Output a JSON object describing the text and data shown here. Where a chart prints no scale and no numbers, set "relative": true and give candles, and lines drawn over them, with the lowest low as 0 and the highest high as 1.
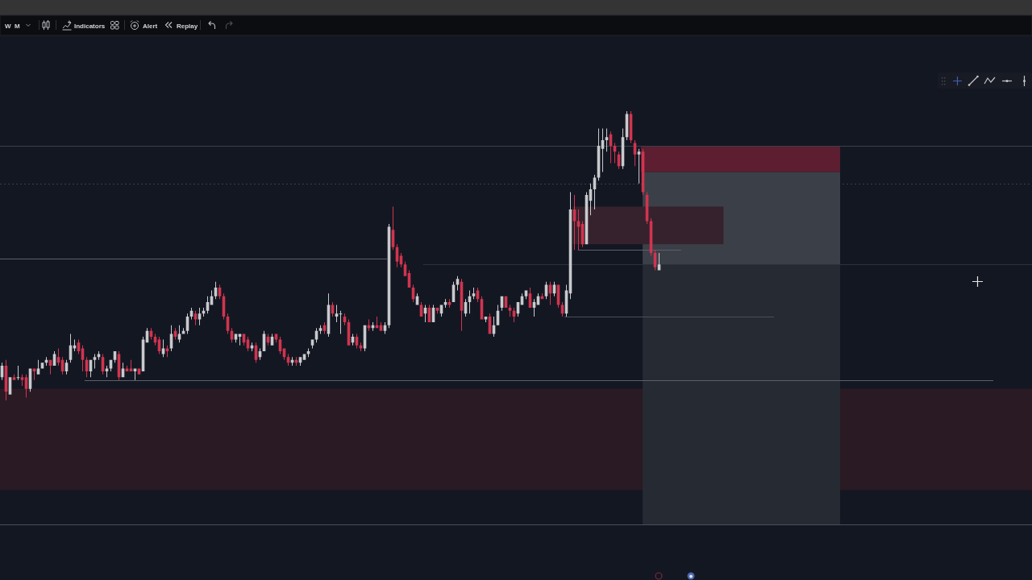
{
  "chart_data": {
    "type": "candlestick",
    "relative": true,
    "annotations": [
      "W",
      "M",
      "Indicators",
      "Alert",
      "Replay"
    ],
    "categories": [
      null,
      null,
      null,
      null,
      null,
      null,
      null,
      null,
      null,
      null,
      null,
      null,
      null,
      null,
      null,
      null,
      null,
      null,
      null,
      null,
      null,
      null,
      null,
      null,
      null,
      null,
      null,
      null,
      null,
      null,
      null,
      null,
      null,
      null,
      null,
      null,
      null,
      null,
      null,
      null,
      null,
      null,
      null,
      null,
      null,
      null,
      null,
      null,
      null,
      null,
      null,
      null,
      null,
      null,
      null,
      null,
      null,
      null,
      null,
      null,
      null,
      null,
      null,
      null,
      null,
      null,
      null,
      null,
      null,
      null,
      null,
      null,
      null,
      null,
      null,
      null,
      null,
      null,
      null,
      null,
      null,
      null,
      null,
      null,
      null,
      null,
      null,
      null,
      null,
      null,
      null,
      null,
      null,
      null,
      null,
      null,
      null,
      null,
      null,
      null,
      null,
      null,
      null,
      null,
      null,
      null,
      null,
      null,
      null,
      null,
      null,
      null,
      null,
      null,
      null,
      null,
      null,
      null,
      null,
      null,
      null,
      null,
      null,
      null,
      null,
      null,
      null,
      null,
      null,
      null,
      null,
      null,
      null,
      null,
      null,
      null,
      null,
      null,
      null,
      null,
      null,
      null,
      null,
      null,
      null,
      null,
      null,
      null,
      null,
      null,
      null,
      null,
      null,
      null,
      null,
      null,
      null,
      null,
      null,
      null,
      null,
      null,
      null,
      null,
      null,
      null,
      null,
      null,
      null,
      null,
      null,
      null,
      null,
      null,
      null,
      null,
      null,
      null,
      null,
      null,
      null,
      null,
      null,
      null,
      null,
      null,
      null,
      null,
      null,
      null,
      null,
      null,
      null,
      null,
      null,
      null,
      null,
      null,
      null,
      null,
      null,
      null,
      null,
      null,
      null,
      null,
      null,
      null,
      null,
      null,
      null,
      null,
      null,
      null,
      null,
      null,
      null,
      null,
      null,
      null,
      null,
      null,
      null,
      null,
      null,
      null,
      null,
      null,
      null,
      null,
      null,
      null,
      null,
      null,
      null,
      null,
      null,
      null,
      null,
      null,
      null,
      null,
      null,
      null,
      null,
      null,
      null,
      null,
      null,
      null,
      null,
      null,
      null,
      null,
      null,
      null
    ],
    "ohlc": [
      [
        0.08,
        0.13,
        0.07,
        0.12
      ],
      [
        0.12,
        0.14,
        0,
        0.03
      ],
      [
        0.02,
        0.08,
        0.02,
        0.08
      ],
      [
        0.08,
        0.09,
        0.07,
        0.07
      ],
      [
        0.08,
        0.12,
        0.07,
        0.08
      ],
      [
        0.08,
        0.09,
        0.05,
        0.07
      ],
      [
        0.08,
        0.09,
        0.01,
        0.04
      ],
      [
        0.04,
        0.11,
        0.03,
        0.11
      ],
      [
        0.11,
        0.11,
        0.07,
        0.1
      ],
      [
        0.09,
        0.14,
        0.09,
        0.11
      ],
      [
        0.11,
        0.13,
        0.11,
        0.13
      ],
      [
        0.13,
        0.15,
        0.12,
        0.14
      ],
      [
        0.14,
        0.14,
        0.09,
        0.12
      ],
      [
        0.12,
        0.17,
        0.12,
        0.16
      ],
      [
        0.15,
        0.18,
        0.12,
        0.13
      ],
      [
        0.14,
        0.15,
        0.09,
        0.1
      ],
      [
        0.1,
        0.14,
        0.09,
        0.13
      ],
      [
        0.14,
        0.23,
        0.13,
        0.19
      ],
      [
        0.18,
        0.21,
        0.17,
        0.19
      ],
      [
        0.2,
        0.21,
        0.16,
        0.17
      ],
      [
        0.18,
        0.19,
        0.1,
        0.14
      ],
      [
        0.14,
        0.15,
        0.08,
        0.1
      ],
      [
        0.1,
        0.14,
        0.08,
        0.14
      ],
      [
        0.14,
        0.16,
        0.11,
        0.15
      ],
      [
        0.15,
        0.17,
        0.14,
        0.16
      ],
      [
        0.15,
        0.16,
        0.09,
        0.1
      ],
      [
        0.1,
        0.12,
        0.08,
        0.11
      ],
      [
        0.11,
        0.14,
        0.1,
        0.14
      ],
      [
        0.14,
        0.17,
        0.13,
        0.17
      ],
      [
        0.16,
        0.17,
        0.07,
        0.08
      ],
      [
        0.08,
        0.13,
        0.08,
        0.11
      ],
      [
        0.11,
        0.12,
        0.1,
        0.1
      ],
      [
        0.11,
        0.14,
        0.1,
        0.1
      ],
      [
        0.1,
        0.11,
        0.07,
        0.11
      ],
      [
        0.11,
        0.11,
        0.09,
        0.09
      ],
      [
        0.1,
        0.22,
        0.1,
        0.21
      ],
      [
        0.2,
        0.25,
        0.2,
        0.24
      ],
      [
        0.24,
        0.25,
        0.21,
        0.22
      ],
      [
        0.22,
        0.23,
        0.19,
        0.2
      ],
      [
        0.21,
        0.22,
        0.16,
        0.17
      ],
      [
        0.16,
        0.21,
        0.15,
        0.18
      ],
      [
        0.18,
        0.19,
        0.15,
        0.17
      ],
      [
        0.18,
        0.26,
        0.17,
        0.23
      ],
      [
        0.24,
        0.25,
        0.21,
        0.22
      ],
      [
        0.21,
        0.26,
        0.2,
        0.23
      ],
      [
        0.23,
        0.25,
        0.23,
        0.24
      ],
      [
        0.24,
        0.3,
        0.23,
        0.29
      ],
      [
        0.29,
        0.32,
        0.28,
        0.31
      ],
      [
        0.3,
        0.31,
        0.26,
        0.28
      ],
      [
        0.28,
        0.32,
        0.26,
        0.3
      ],
      [
        0.3,
        0.32,
        0.29,
        0.31
      ],
      [
        0.31,
        0.36,
        0.3,
        0.34
      ],
      [
        0.33,
        0.38,
        0.33,
        0.36
      ],
      [
        0.36,
        0.41,
        0.35,
        0.39
      ],
      [
        0.39,
        0.4,
        0.35,
        0.36
      ],
      [
        0.36,
        0.37,
        0.28,
        0.29
      ],
      [
        0.29,
        0.3,
        0.23,
        0.24
      ],
      [
        0.24,
        0.25,
        0.2,
        0.21
      ],
      [
        0.21,
        0.23,
        0.2,
        0.23
      ],
      [
        0.22,
        0.23,
        0.19,
        0.23
      ],
      [
        0.23,
        0.23,
        0.19,
        0.2
      ],
      [
        0.21,
        0.22,
        0.17,
        0.18
      ],
      [
        0.18,
        0.2,
        0.17,
        0.19
      ],
      [
        0.19,
        0.2,
        0.13,
        0.14
      ],
      [
        0.15,
        0.18,
        0.14,
        0.17
      ],
      [
        0.17,
        0.24,
        0.17,
        0.23
      ],
      [
        0.22,
        0.23,
        0.19,
        0.2
      ],
      [
        0.19,
        0.23,
        0.19,
        0.22
      ],
      [
        0.23,
        0.23,
        0.2,
        0.21
      ],
      [
        0.21,
        0.22,
        0.16,
        0.17
      ],
      [
        0.18,
        0.18,
        0.14,
        0.15
      ],
      [
        0.15,
        0.16,
        0.12,
        0.13
      ],
      [
        0.13,
        0.15,
        0.12,
        0.14
      ],
      [
        0.14,
        0.15,
        0.12,
        0.13
      ],
      [
        0.13,
        0.15,
        0.12,
        0.15
      ],
      [
        0.14,
        0.16,
        0.14,
        0.16
      ],
      [
        0.16,
        0.18,
        0.15,
        0.17
      ],
      [
        0.19,
        0.21,
        0.18,
        0.21
      ],
      [
        0.21,
        0.25,
        0.2,
        0.24
      ],
      [
        0.24,
        0.26,
        0.23,
        0.25
      ],
      [
        0.26,
        0.27,
        0.23,
        0.24
      ],
      [
        0.23,
        0.37,
        0.22,
        0.33
      ],
      [
        0.33,
        0.34,
        0.29,
        0.3
      ],
      [
        0.29,
        0.33,
        0.27,
        0.3
      ],
      [
        0.3,
        0.31,
        0.23,
        0.3
      ],
      [
        0.29,
        0.3,
        0.26,
        0.27
      ],
      [
        0.27,
        0.28,
        0.19,
        0.19
      ],
      [
        0.2,
        0.23,
        0.19,
        0.22
      ],
      [
        0.22,
        0.23,
        0.18,
        0.19
      ],
      [
        0.19,
        0.2,
        0.17,
        0.18
      ],
      [
        0.18,
        0.26,
        0.17,
        0.26
      ],
      [
        0.26,
        0.28,
        0.24,
        0.25
      ],
      [
        0.25,
        0.27,
        0.24,
        0.26
      ],
      [
        0.26,
        0.29,
        0.25,
        0.25
      ],
      [
        0.26,
        0.27,
        0.24,
        0.24
      ],
      [
        0.24,
        0.27,
        0.23,
        0.26
      ],
      [
        0.26,
        0.61,
        0.25,
        0.6
      ],
      [
        0.59,
        0.67,
        0.52,
        0.53
      ],
      [
        0.53,
        0.54,
        0.46,
        0.48
      ],
      [
        0.5,
        0.51,
        0.46,
        0.47
      ],
      [
        0.47,
        0.48,
        0.43,
        0.43
      ],
      [
        0.44,
        0.45,
        0.39,
        0.39
      ],
      [
        0.39,
        0.4,
        0.34,
        0.35
      ],
      [
        0.33,
        0.37,
        0.33,
        0.36
      ],
      [
        0.33,
        0.34,
        0.29,
        0.29
      ],
      [
        0.3,
        0.33,
        0.27,
        0.32
      ],
      [
        0.32,
        0.33,
        0.27,
        0.27
      ],
      [
        0.27,
        0.33,
        0.27,
        0.32
      ],
      [
        0.32,
        0.32,
        0.3,
        0.31
      ],
      [
        0.3,
        0.33,
        0.29,
        0.33
      ],
      [
        0.33,
        0.35,
        0.32,
        0.34
      ],
      [
        0.34,
        0.35,
        0.32,
        0.33
      ],
      [
        0.34,
        0.41,
        0.34,
        0.4
      ],
      [
        0.4,
        0.43,
        0.38,
        0.42
      ],
      [
        0.41,
        0.42,
        0.24,
        0.31
      ],
      [
        0.3,
        0.35,
        0.29,
        0.34
      ],
      [
        0.34,
        0.38,
        0.3,
        0.36
      ],
      [
        0.36,
        0.39,
        0.35,
        0.37
      ],
      [
        0.38,
        0.39,
        0.34,
        0.35
      ],
      [
        0.35,
        0.36,
        0.28,
        0.28
      ],
      [
        0.28,
        0.29,
        0.27,
        0.29
      ],
      [
        0.29,
        0.3,
        0.23,
        0.23
      ],
      [
        0.23,
        0.29,
        0.22,
        0.26
      ],
      [
        0.26,
        0.33,
        0.26,
        0.31
      ],
      [
        0.32,
        0.36,
        0.31,
        0.36
      ],
      [
        0.36,
        0.36,
        0.32,
        0.32
      ],
      [
        0.32,
        0.33,
        0.29,
        0.31
      ],
      [
        0.31,
        0.32,
        0.27,
        0.29
      ],
      [
        0.3,
        0.34,
        0.29,
        0.34
      ],
      [
        0.33,
        0.37,
        0.33,
        0.36
      ],
      [
        0.36,
        0.38,
        0.35,
        0.38
      ],
      [
        0.37,
        0.39,
        0.32,
        0.32
      ],
      [
        0.32,
        0.35,
        0.29,
        0.34
      ],
      [
        0.33,
        0.37,
        0.33,
        0.36
      ],
      [
        0.36,
        0.37,
        0.35,
        0.35
      ],
      [
        0.36,
        0.41,
        0.35,
        0.4
      ],
      [
        0.4,
        0.41,
        0.33,
        0.37
      ],
      [
        0.37,
        0.41,
        0.36,
        0.4
      ],
      [
        0.4,
        0.4,
        0.32,
        0.33
      ],
      [
        0.33,
        0.34,
        0.29,
        0.3
      ],
      [
        0.3,
        0.4,
        0.29,
        0.38
      ],
      [
        0.37,
        0.72,
        0.35,
        0.66
      ],
      [
        0.66,
        0.71,
        0.52,
        0.62
      ],
      [
        0.62,
        0.66,
        0.52,
        0.6
      ],
      [
        0.61,
        0.62,
        0.53,
        0.54
      ],
      [
        0.54,
        0.72,
        0.54,
        0.71
      ],
      [
        0.69,
        0.75,
        0.64,
        0.73
      ],
      [
        0.73,
        0.78,
        0.66,
        0.77
      ],
      [
        0.77,
        0.94,
        0.76,
        0.88
      ],
      [
        0.87,
        0.94,
        0.79,
        0.9
      ],
      [
        0.9,
        0.94,
        0.86,
        0.91
      ],
      [
        0.92,
        0.93,
        0.82,
        0.88
      ],
      [
        0.88,
        0.89,
        0.82,
        0.86
      ],
      [
        0.85,
        0.86,
        0.8,
        0.81
      ],
      [
        0.81,
        0.94,
        0.8,
        0.91
      ],
      [
        0.91,
        1,
        0.9,
        0.99
      ],
      [
        0.99,
        1,
        0.89,
        0.9
      ],
      [
        0.89,
        0.9,
        0.81,
        0.85
      ],
      [
        0.85,
        0.87,
        0.75,
        0.86
      ],
      [
        0.86,
        0.87,
        0.71,
        0.72
      ],
      [
        0.71,
        0.72,
        0.61,
        0.62
      ],
      [
        0.62,
        0.63,
        0.5,
        0.51
      ],
      [
        0.51,
        0.52,
        0.45,
        0.46
      ],
      [
        0.45,
        0.51,
        0.45,
        0.47
      ],
      null,
      null,
      null,
      null,
      null,
      null,
      null,
      null,
      null,
      null,
      null,
      null,
      null,
      null,
      null,
      null,
      null,
      null,
      null,
      null,
      null,
      null,
      null,
      null,
      null,
      null,
      null,
      null,
      null,
      null,
      null,
      null,
      null,
      null,
      null,
      null,
      null,
      null,
      null,
      null,
      null,
      null,
      null,
      null,
      null,
      null,
      null,
      null,
      null,
      null,
      null,
      null,
      null,
      null,
      null,
      null,
      null,
      null,
      null,
      null,
      null,
      null,
      null,
      null,
      null,
      null,
      null,
      null,
      null,
      null,
      null,
      null,
      null,
      null,
      null,
      null,
      null,
      null,
      null,
      null,
      null,
      null,
      null,
      null,
      null,
      null,
      null,
      null,
      null,
      null,
      null,
      null
    ],
    "bands": [
      {
        "axis": "y",
        "from": -0.31,
        "to": 0.04,
        "color": "#2a1a24"
      },
      {
        "axis": "y",
        "from": -0.43,
        "to": 0.47,
        "color": "#262a32"
      },
      {
        "axis": "y",
        "from": 0.47,
        "to": 0.79,
        "color": "#3b3f48"
      },
      {
        "axis": "y",
        "from": 0.54,
        "to": 0.67,
        "color": "#35222d"
      },
      {
        "axis": "y",
        "from": 0.79,
        "to": 0.88,
        "color": "#5c1e30"
      }
    ],
    "ref_lines": [
      {
        "axis": "y",
        "value": 0.88,
        "color": "#3c404a"
      },
      {
        "axis": "y",
        "value": 0.75,
        "color": "#3c404a",
        "line_style": "dotted"
      },
      {
        "axis": "y",
        "value": 0.49,
        "color": "#5d6068"
      },
      {
        "axis": "y",
        "value": 0.47,
        "color": "#2c303a"
      },
      {
        "axis": "y",
        "value": 0.52,
        "color": "#5d6068"
      },
      {
        "axis": "y",
        "value": 0.29,
        "color": "#4a4e57"
      },
      {
        "axis": "y",
        "value": 0.07,
        "color": "#5d6068"
      },
      {
        "axis": "y",
        "value": -0.43,
        "color": "#4a4e57"
      }
    ]
  }
}
